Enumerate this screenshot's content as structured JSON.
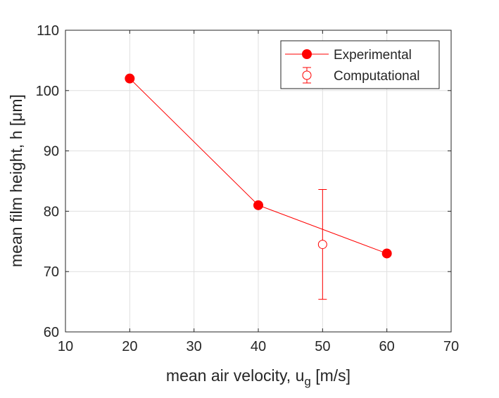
{
  "chart_data": {
    "type": "line",
    "title": "",
    "xlabel": "mean air velocity, u",
    "xlabel_subscript": "g",
    "xlabel_suffix": " [m/s]",
    "ylabel": "mean film height, h [μm]",
    "xlim": [
      10,
      70
    ],
    "ylim": [
      60,
      110
    ],
    "xticks": [
      10,
      20,
      30,
      40,
      50,
      60,
      70
    ],
    "yticks": [
      60,
      70,
      80,
      90,
      100,
      110
    ],
    "xtick_labels": [
      "10",
      "20",
      "30",
      "40",
      "50",
      "60",
      "70"
    ],
    "ytick_labels": [
      "60",
      "70",
      "80",
      "90",
      "100",
      "110"
    ],
    "grid": true,
    "legend_position": "top-right",
    "series": [
      {
        "name": "Experimental",
        "style": "line-filled-marker",
        "x": [
          20,
          40,
          60
        ],
        "y": [
          102,
          81,
          73
        ]
      },
      {
        "name": "Computational",
        "style": "open-marker-errorbar",
        "x": [
          50
        ],
        "y": [
          74.5
        ],
        "error_low": [
          65.4
        ],
        "error_high": [
          83.6
        ]
      }
    ],
    "colors": {
      "series": "#ff0000",
      "axis": "#262626",
      "grid": "#dfdfdf"
    }
  }
}
